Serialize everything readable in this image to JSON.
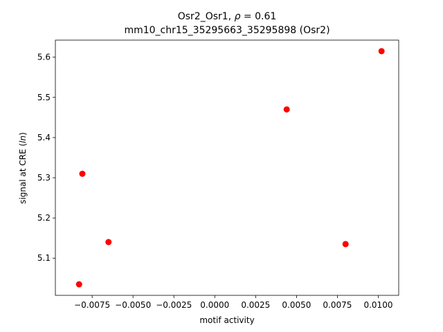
{
  "chart_data": {
    "type": "scatter",
    "title_line1_prefix": "Osr2_Osr1, ",
    "title_rho_symbol": "ρ",
    "title_rho_value": " = 0.61",
    "title_line2": "mm10_chr15_35295663_35295898 (Osr2)",
    "xlabel": "motif activity",
    "ylabel_prefix": "signal at CRE (",
    "ylabel_italic": "ln",
    "ylabel_suffix": ")",
    "xlim": [
      -0.00975,
      0.01125
    ],
    "ylim": [
      5.0075,
      5.6425
    ],
    "x_ticks": [
      -0.0075,
      -0.005,
      -0.0025,
      0.0,
      0.0025,
      0.005,
      0.0075,
      0.01
    ],
    "x_tick_labels": [
      "−0.0075",
      "−0.0050",
      "−0.0025",
      "0.0000",
      "0.0025",
      "0.0050",
      "0.0075",
      "0.0100"
    ],
    "y_ticks": [
      5.1,
      5.2,
      5.3,
      5.4,
      5.5,
      5.6
    ],
    "y_tick_labels": [
      "5.1",
      "5.2",
      "5.3",
      "5.4",
      "5.5",
      "5.6"
    ],
    "grid": false,
    "marker_color": "#ff0000",
    "points": [
      {
        "x": -0.0083,
        "y": 5.035
      },
      {
        "x": -0.0081,
        "y": 5.31
      },
      {
        "x": -0.0065,
        "y": 5.14
      },
      {
        "x": 0.0044,
        "y": 5.47
      },
      {
        "x": 0.008,
        "y": 5.135
      },
      {
        "x": 0.0102,
        "y": 5.615
      }
    ]
  }
}
